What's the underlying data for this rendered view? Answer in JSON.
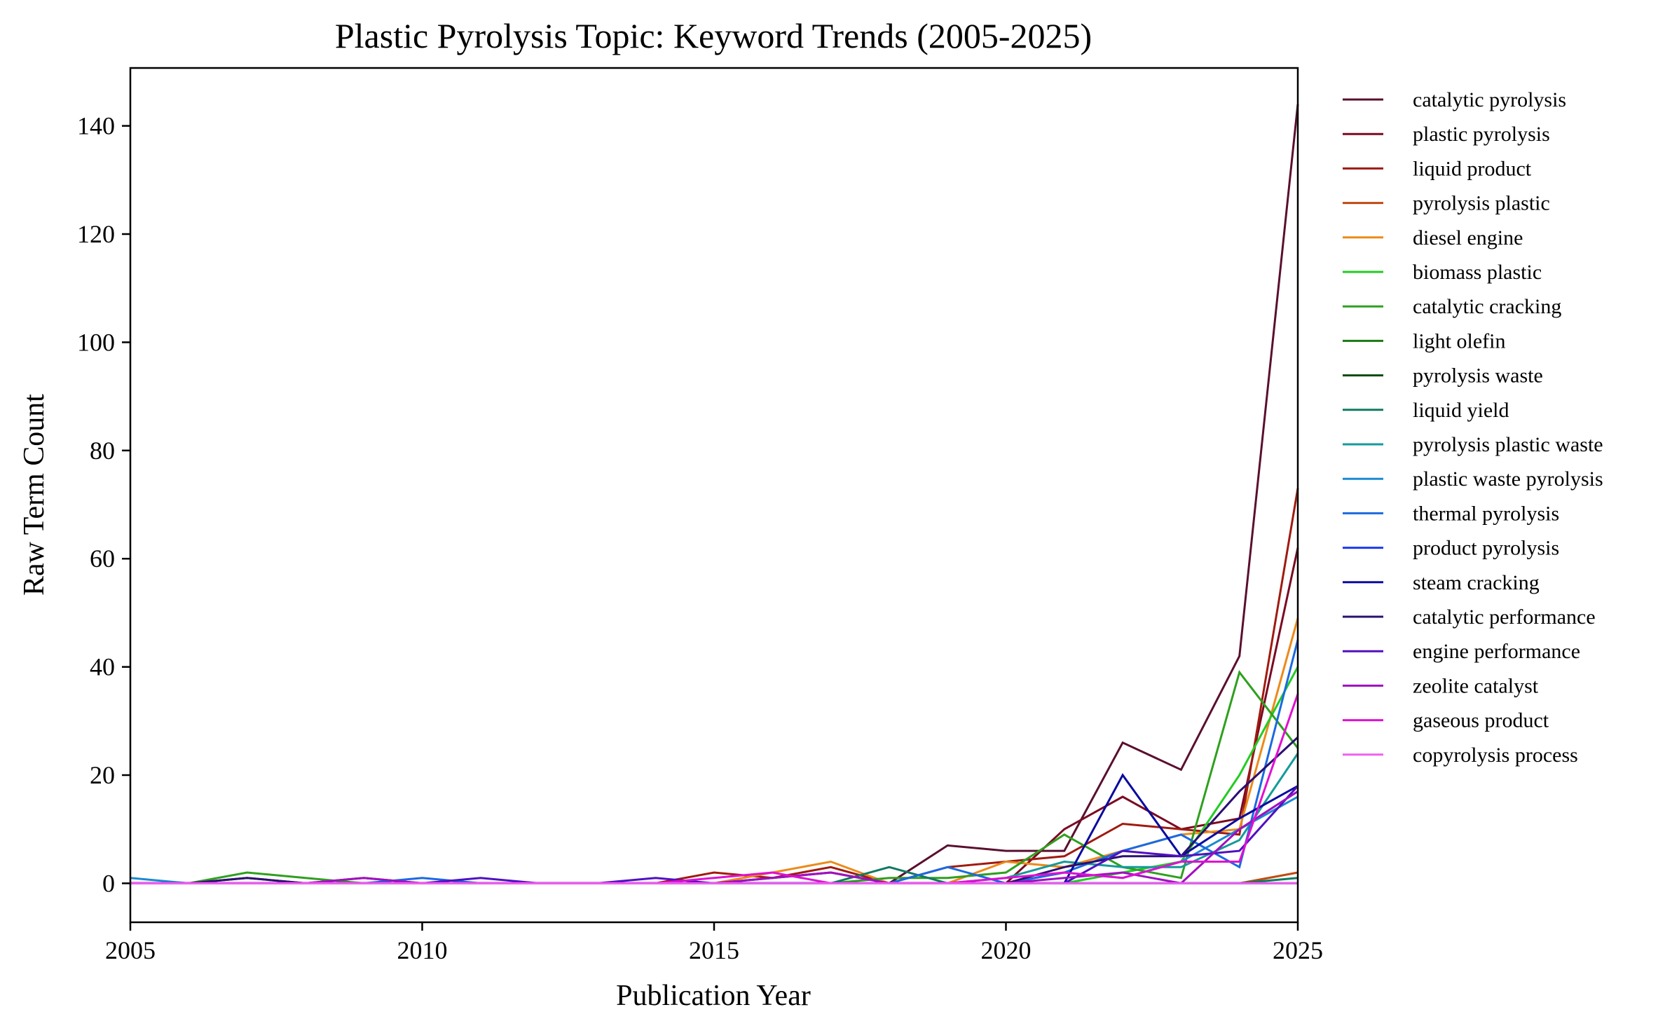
{
  "chart_data": {
    "type": "line",
    "title": "Plastic Pyrolysis Topic: Keyword Trends (2005-2025)",
    "xlabel": "Publication Year",
    "ylabel": "Raw Term Count",
    "xlim": [
      2005,
      2025
    ],
    "ylim": [
      -7.2,
      150.7
    ],
    "x_ticks": [
      2005,
      2010,
      2015,
      2020,
      2025
    ],
    "y_ticks": [
      0,
      20,
      40,
      60,
      80,
      100,
      120,
      140
    ],
    "grid": false,
    "legend_position": "outside-right",
    "x": [
      2005,
      2006,
      2007,
      2008,
      2009,
      2010,
      2011,
      2012,
      2013,
      2014,
      2015,
      2016,
      2017,
      2018,
      2019,
      2020,
      2021,
      2022,
      2023,
      2024,
      2025
    ],
    "series": [
      {
        "name": "catalytic pyrolysis",
        "color": "#5a0f2e",
        "values": [
          0,
          0,
          0,
          0,
          0,
          0,
          0,
          0,
          0,
          0,
          0,
          0,
          0,
          0,
          7,
          6,
          6,
          26,
          21,
          42,
          144
        ]
      },
      {
        "name": "plastic pyrolysis",
        "color": "#7a0a22",
        "values": [
          0,
          0,
          1,
          0,
          1,
          0,
          0,
          0,
          0,
          0,
          0,
          0,
          0,
          0,
          0,
          0,
          10,
          16,
          10,
          12,
          62
        ]
      },
      {
        "name": "liquid product",
        "color": "#a01a10",
        "values": [
          0,
          0,
          0,
          0,
          0,
          0,
          0,
          0,
          0,
          0,
          2,
          1,
          3,
          0,
          3,
          4,
          5,
          11,
          10,
          9,
          73
        ]
      },
      {
        "name": "pyrolysis plastic",
        "color": "#c04a10",
        "values": [
          0,
          0,
          0,
          0,
          0,
          0,
          0,
          0,
          0,
          0,
          0,
          0,
          0,
          0,
          0,
          0,
          0,
          0,
          0,
          0,
          2
        ]
      },
      {
        "name": "diesel engine",
        "color": "#ec8a1a",
        "values": [
          0,
          0,
          0,
          0,
          0,
          0,
          0,
          0,
          0,
          0,
          0,
          2,
          4,
          0,
          0,
          4,
          3,
          6,
          9,
          10,
          49
        ]
      },
      {
        "name": "biomass plastic",
        "color": "#22cc22",
        "values": [
          0,
          0,
          0,
          0,
          0,
          0,
          0,
          0,
          0,
          0,
          0,
          0,
          0,
          0,
          0,
          0,
          0,
          2,
          4,
          20,
          40
        ]
      },
      {
        "name": "catalytic cracking",
        "color": "#2ea01e",
        "values": [
          0,
          0,
          2,
          1,
          0,
          0,
          0,
          0,
          0,
          0,
          0,
          0,
          0,
          1,
          1,
          2,
          9,
          3,
          1,
          39,
          25
        ]
      },
      {
        "name": "light olefin",
        "color": "#1a7a12",
        "values": [
          0,
          0,
          0,
          0,
          0,
          0,
          0,
          0,
          0,
          0,
          0,
          0,
          0,
          0,
          0,
          0,
          0,
          0,
          0,
          0,
          0
        ]
      },
      {
        "name": "pyrolysis waste",
        "color": "#0c4a0c",
        "values": [
          0,
          0,
          0,
          0,
          0,
          0,
          0,
          0,
          0,
          0,
          0,
          0,
          0,
          0,
          0,
          0,
          0,
          0,
          0,
          0,
          0
        ]
      },
      {
        "name": "liquid yield",
        "color": "#107a60",
        "values": [
          0,
          0,
          0,
          0,
          0,
          0,
          0,
          0,
          0,
          0,
          0,
          0,
          0,
          3,
          0,
          0,
          0,
          0,
          0,
          0,
          1
        ]
      },
      {
        "name": "pyrolysis plastic waste",
        "color": "#159a9a",
        "values": [
          0,
          0,
          0,
          0,
          0,
          0,
          0,
          0,
          0,
          0,
          0,
          0,
          0,
          0,
          0,
          1,
          4,
          3,
          3,
          8,
          24
        ]
      },
      {
        "name": "plastic waste pyrolysis",
        "color": "#1a8ad0",
        "values": [
          1,
          0,
          0,
          0,
          0,
          0,
          0,
          0,
          0,
          0,
          0,
          0,
          0,
          0,
          0,
          0,
          2,
          1,
          4,
          10,
          16
        ]
      },
      {
        "name": "thermal pyrolysis",
        "color": "#1a6ae0",
        "values": [
          0,
          0,
          0,
          0,
          0,
          1,
          0,
          0,
          0,
          0,
          0,
          0,
          0,
          0,
          3,
          0,
          2,
          6,
          9,
          3,
          45
        ]
      },
      {
        "name": "product pyrolysis",
        "color": "#1a3af0",
        "values": [
          0,
          0,
          0,
          0,
          0,
          0,
          0,
          0,
          0,
          0,
          0,
          0,
          0,
          0,
          0,
          0,
          0,
          0,
          0,
          0,
          0
        ]
      },
      {
        "name": "steam cracking",
        "color": "#0a0aa0",
        "values": [
          0,
          0,
          0,
          0,
          0,
          0,
          0,
          0,
          0,
          0,
          0,
          0,
          0,
          0,
          0,
          0,
          0,
          20,
          5,
          12,
          18
        ]
      },
      {
        "name": "catalytic performance",
        "color": "#2a1070",
        "values": [
          0,
          0,
          1,
          0,
          0,
          0,
          0,
          0,
          0,
          0,
          0,
          1,
          2,
          0,
          0,
          0,
          3,
          5,
          5,
          17,
          27
        ]
      },
      {
        "name": "engine performance",
        "color": "#5010c0",
        "values": [
          0,
          0,
          0,
          0,
          0,
          0,
          1,
          0,
          0,
          1,
          0,
          0,
          0,
          0,
          0,
          0,
          0,
          6,
          5,
          6,
          18
        ]
      },
      {
        "name": "zeolite catalyst",
        "color": "#a010c0",
        "values": [
          0,
          0,
          0,
          0,
          1,
          0,
          0,
          0,
          0,
          0,
          0,
          1,
          2,
          0,
          0,
          0,
          1,
          2,
          0,
          10,
          17
        ]
      },
      {
        "name": "gaseous product",
        "color": "#e010d0",
        "values": [
          0,
          0,
          0,
          0,
          0,
          0,
          0,
          0,
          0,
          0,
          1,
          2,
          0,
          0,
          0,
          1,
          2,
          1,
          4,
          4,
          35
        ]
      },
      {
        "name": "copyrolysis process",
        "color": "#f060f0",
        "values": [
          0,
          0,
          0,
          0,
          0,
          0,
          0,
          0,
          0,
          0,
          0,
          0,
          0,
          0,
          0,
          0,
          0,
          0,
          0,
          0,
          0
        ]
      }
    ]
  }
}
